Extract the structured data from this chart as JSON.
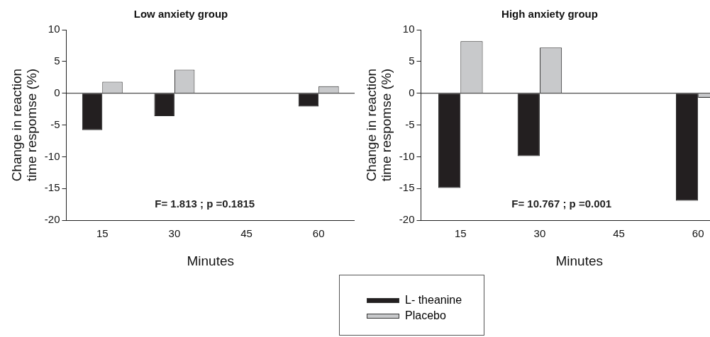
{
  "chart_data": [
    {
      "type": "bar",
      "title": "Low anxiety group",
      "xlabel": "Minutes",
      "ylabel": "Change in reaction\ntime respomse (%)",
      "categories": [
        "15",
        "30",
        "45",
        "60"
      ],
      "series": [
        {
          "name": "L- theanine",
          "color": "#231f20",
          "values": [
            -5.8,
            -3.6,
            null,
            -2.1
          ]
        },
        {
          "name": "Placebo",
          "color": "#c8c9cb",
          "values": [
            1.8,
            3.7,
            null,
            1.1
          ]
        }
      ],
      "ylim": [
        -20,
        10
      ],
      "yticks": [
        -20,
        -15,
        -10,
        -5,
        0,
        5,
        10
      ],
      "grid": false,
      "legend": "bottom",
      "ref_lines": [
        {
          "axis": "y",
          "value": 0,
          "color": "#222222"
        }
      ],
      "annotations": [
        "F= 1.813 ; p =0.1815"
      ]
    },
    {
      "type": "bar",
      "title": "High anxiety group",
      "xlabel": "Minutes",
      "ylabel": "Change in reaction\ntime respomse (%)",
      "categories": [
        "15",
        "30",
        "45",
        "60"
      ],
      "series": [
        {
          "name": "L- theanine",
          "color": "#231f20",
          "values": [
            -14.9,
            -9.9,
            null,
            -16.9
          ]
        },
        {
          "name": "Placebo",
          "color": "#c8c9cb",
          "values": [
            8.2,
            7.2,
            null,
            -0.7
          ]
        }
      ],
      "ylim": [
        -20,
        10
      ],
      "yticks": [
        -20,
        -15,
        -10,
        -5,
        0,
        5,
        10
      ],
      "grid": false,
      "legend": "bottom",
      "ref_lines": [
        {
          "axis": "y",
          "value": 0,
          "color": "#222222"
        }
      ],
      "annotations": [
        "F= 10.767 ; p =0.001"
      ]
    }
  ]
}
